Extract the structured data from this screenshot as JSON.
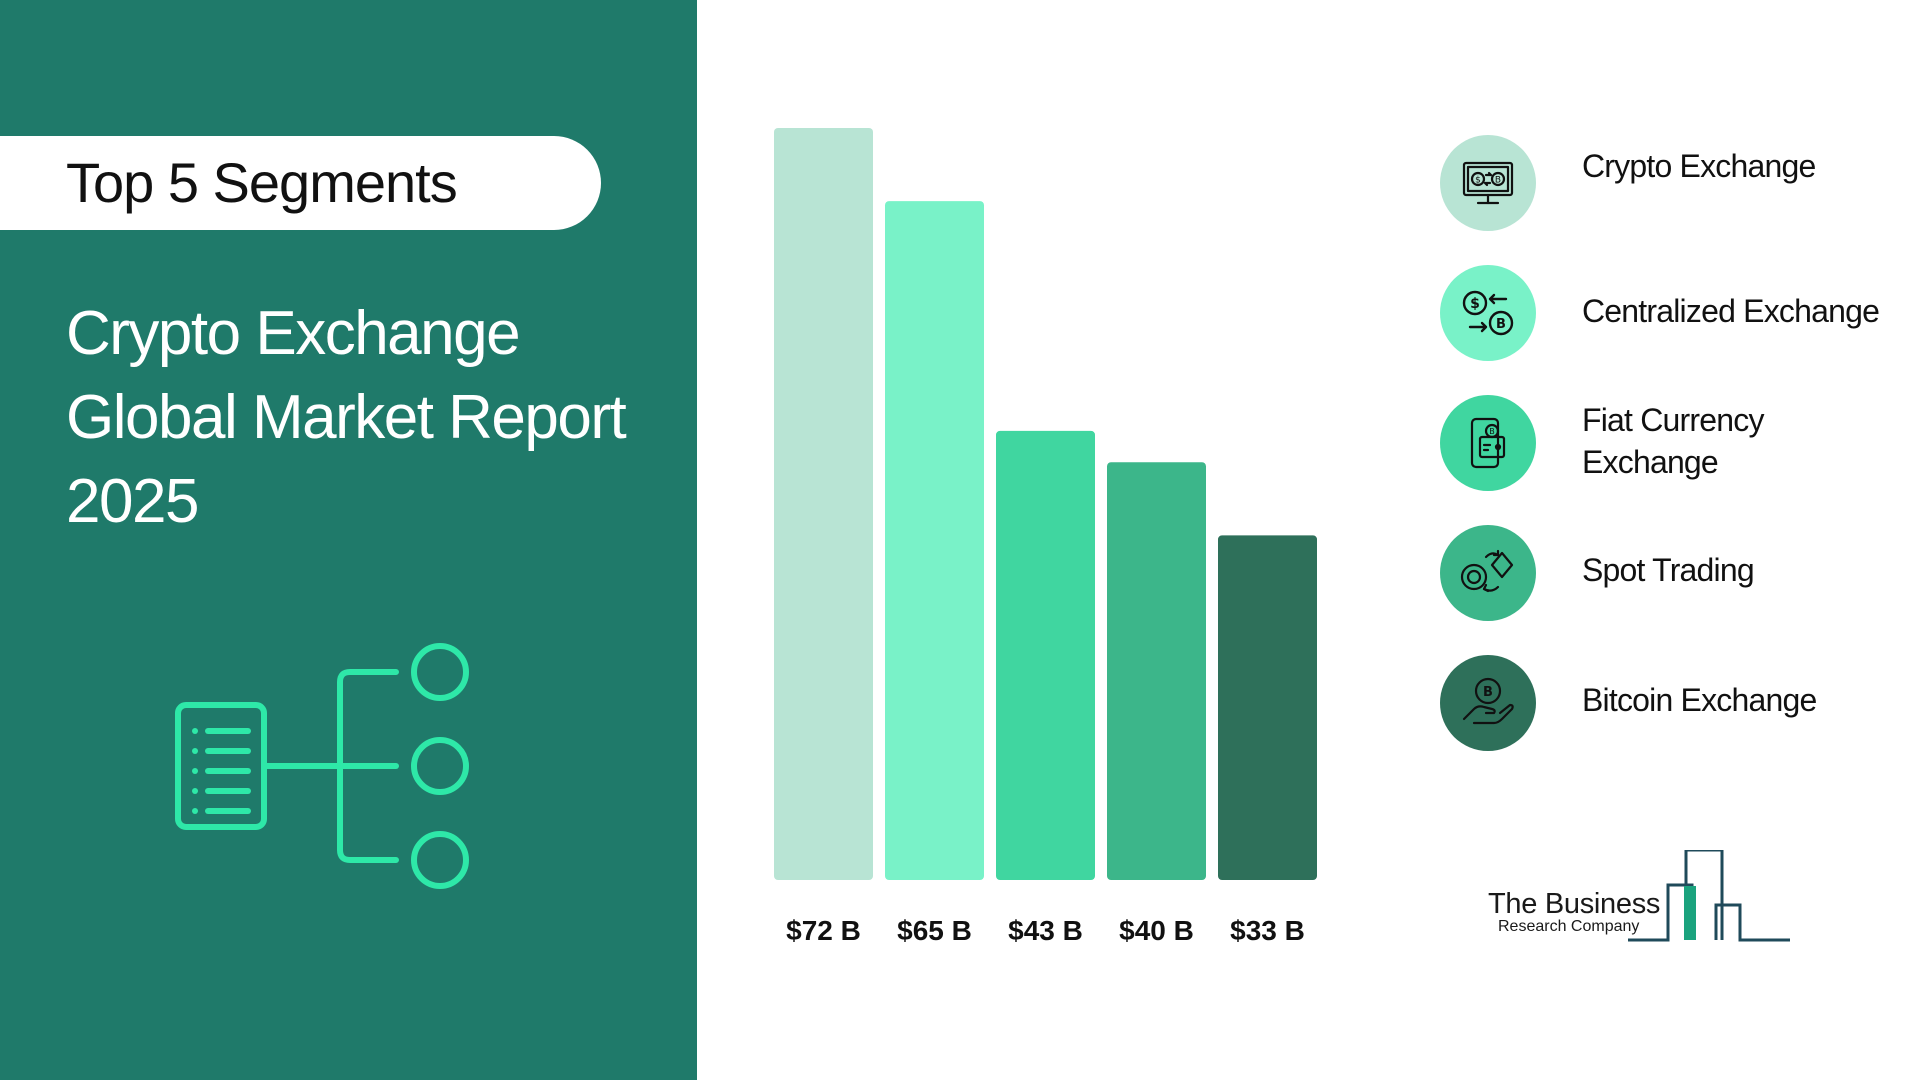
{
  "header": {
    "badge_label": "Top 5 Segments",
    "title_lines": [
      "Crypto Exchange",
      "Global Market Report",
      "2025"
    ]
  },
  "colors": {
    "panel": "#1f7a6a",
    "accent": "#2ee8a8",
    "bars": [
      "#b8e4d4",
      "#79f2c8",
      "#40d6a0",
      "#3cb68a",
      "#2e705a"
    ]
  },
  "chart_data": {
    "type": "bar",
    "categories": [
      "Crypto Exchange",
      "Centralized Exchange",
      "Fiat Currency Exchange",
      "Spot Trading",
      "Bitcoin Exchange"
    ],
    "values": [
      72,
      65,
      43,
      40,
      33
    ],
    "value_labels": [
      "$72 B",
      "$65 B",
      "$43 B",
      "$40 B",
      "$33 B"
    ],
    "unit": "$ B",
    "ylim": [
      0,
      72
    ],
    "grid": false,
    "legend_placement": "right"
  },
  "legend": {
    "items": [
      {
        "label_lines": [
          "Crypto Exchange"
        ],
        "icon": "monitor-exchange-icon"
      },
      {
        "label_lines": [
          "Centralized Exchange"
        ],
        "icon": "dollar-bitcoin-swap-icon"
      },
      {
        "label_lines": [
          "Fiat Currency",
          "Exchange"
        ],
        "icon": "phone-wallet-icon"
      },
      {
        "label_lines": [
          "Spot Trading"
        ],
        "icon": "coin-diamond-exchange-icon"
      },
      {
        "label_lines": [
          "Bitcoin Exchange"
        ],
        "icon": "hand-bitcoin-icon"
      }
    ]
  },
  "logo": {
    "line1": "The Business",
    "line2": "Research Company"
  }
}
